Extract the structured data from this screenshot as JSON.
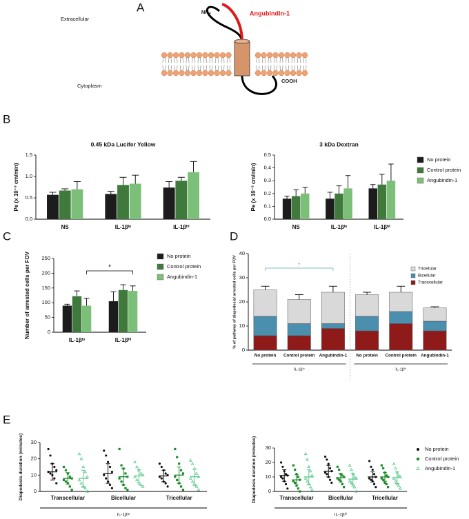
{
  "figure": {
    "panel_labels": [
      "A",
      "B",
      "C",
      "D",
      "E"
    ],
    "diagram": {
      "extracellular": "Extracellular",
      "cytoplasm": "Cytoplasm",
      "n_terminus": "NH₂",
      "c_terminus": "COOH",
      "ligand": "Angubindin-1"
    }
  },
  "chart_data": [
    {
      "type": "bar",
      "title": "0.45 kDa Lucifer Yellow",
      "ylabel": "Pe (x 10⁻³ cm/min)",
      "categories": [
        "NS",
        "IL-1βˡᵒ",
        "IL-1βʰⁱ"
      ],
      "ylim": [
        0,
        1.5
      ],
      "yticks": [
        {
          "value": 0,
          "label": "0.0"
        },
        0.5,
        {
          "value": 1,
          "label": "1.0"
        },
        1.5
      ],
      "legend": false,
      "series": [
        {
          "name": "No protein",
          "color": "#1c1c1c",
          "values": [
            0.57,
            0.59,
            0.74
          ],
          "errors": [
            0.06,
            0.06,
            0.14
          ]
        },
        {
          "name": "Control protein",
          "color": "#3f7a3c",
          "values": [
            0.67,
            0.8,
            0.9
          ],
          "errors": [
            0.04,
            0.18,
            0.08
          ]
        },
        {
          "name": "Angubindin-1",
          "color": "#7cbf78",
          "values": [
            0.7,
            0.83,
            1.1
          ],
          "errors": [
            0.18,
            0.2,
            0.25
          ]
        }
      ]
    },
    {
      "type": "bar",
      "title": "3 kDa Dextran",
      "ylabel": "Pe (x 10⁻³ cm/min)",
      "categories": [
        "NS",
        "IL-1βˡᵒ",
        "IL-1βʰⁱ"
      ],
      "ylim": [
        0,
        0.5
      ],
      "yticks": [
        {
          "value": 0,
          "label": "0.0"
        },
        0.1,
        0.2,
        0.3,
        0.4,
        0.5
      ],
      "legend": true,
      "series": [
        {
          "name": "No protein",
          "color": "#1c1c1c",
          "values": [
            0.16,
            0.16,
            0.24
          ],
          "errors": [
            0.02,
            0.05,
            0.03
          ]
        },
        {
          "name": "Control protein",
          "color": "#3f7a3c",
          "values": [
            0.18,
            0.2,
            0.27
          ],
          "errors": [
            0.05,
            0.06,
            0.08
          ]
        },
        {
          "name": "Angubindin-1",
          "color": "#7cbf78",
          "values": [
            0.2,
            0.24,
            0.3
          ],
          "errors": [
            0.05,
            0.1,
            0.13
          ]
        }
      ]
    },
    {
      "type": "bar",
      "ylabel": "Number of arrested cells per FOV",
      "categories": [
        "IL-1βˡᵒ",
        "IL-1βʰⁱ"
      ],
      "ylim": [
        0,
        250
      ],
      "yticks": [
        0,
        50,
        100,
        150,
        200,
        250
      ],
      "legend": true,
      "annotations": [
        "*"
      ],
      "series": [
        {
          "name": "No protein",
          "color": "#1c1c1c",
          "values": [
            90,
            105
          ],
          "errors": [
            5,
            32
          ]
        },
        {
          "name": "Control protein",
          "color": "#3f7a3c",
          "values": [
            122,
            143
          ],
          "errors": [
            18,
            18
          ]
        },
        {
          "name": "Angubindin-1",
          "color": "#7cbf78",
          "values": [
            90,
            140
          ],
          "errors": [
            25,
            17
          ]
        }
      ]
    },
    {
      "type": "stacked",
      "ylabel": "% of pathway of diapedesis/ arrested cells per FOV",
      "categories": [
        "No protein",
        "Control protein",
        "Angubindin-1",
        "No protein",
        "Control protein",
        "Angubindin-1"
      ],
      "group_labels": [
        "IL-1βˡᵒ",
        "IL-1βʰⁱ"
      ],
      "ylim": [
        0,
        40
      ],
      "yticks": [
        0,
        10,
        20,
        30,
        40
      ],
      "legend": true,
      "annotations": [
        "*"
      ],
      "series": [
        {
          "name": "Transcellular",
          "color": "#8e1a1a",
          "values": [
            6,
            6,
            9,
            8,
            11,
            8
          ],
          "errors": [
            1.5,
            1,
            0.5,
            0.5,
            0.5,
            0.5
          ]
        },
        {
          "name": "Bicellular",
          "color": "#4b8fae",
          "values": [
            8,
            5,
            2,
            6,
            5,
            4
          ],
          "errors": [
            1,
            1,
            0.5,
            0.7,
            1,
            1
          ]
        },
        {
          "name": "Tricellular",
          "color": "#d9d9d9",
          "values": [
            11,
            10,
            13,
            9,
            8,
            5.5
          ],
          "errors": [
            1.5,
            2,
            2.5,
            1,
            2.5,
            0.5
          ]
        }
      ]
    },
    {
      "type": "dotplot",
      "ylabel": "Diapedesis duration (minutes)",
      "categories": [
        "Transcellular",
        "Bicellular",
        "Tricellular"
      ],
      "group_label": "IL-1βˡᵒ",
      "ylim": [
        0,
        30
      ],
      "yticks": [
        0,
        10,
        20,
        30
      ],
      "legend": false,
      "series": [
        {
          "name": "No protein",
          "color": "#111111",
          "marker": "circle",
          "points": [
            [
              26,
              22,
              17,
              15,
              13,
              12,
              11,
              10,
              8,
              5
            ],
            [
              25,
              22,
              18,
              15,
              12,
              10,
              8,
              6,
              4,
              2
            ],
            [
              17,
              15,
              13,
              11,
              10,
              9,
              8,
              6,
              5,
              3
            ]
          ],
          "means": [
            12,
            11,
            9.5
          ],
          "sds": [
            5,
            6,
            3.5
          ]
        },
        {
          "name": "Control protein",
          "color": "#1c8a2c",
          "marker": "square",
          "points": [
            [
              15,
              13,
              11,
              9,
              8,
              7,
              6,
              5,
              3,
              1
            ],
            [
              26,
              16,
              14,
              11,
              9,
              8,
              6,
              4,
              2,
              1
            ],
            [
              26,
              21,
              17,
              13,
              11,
              9,
              7,
              5,
              3,
              1
            ]
          ],
          "means": [
            8,
            9,
            10
          ],
          "sds": [
            3.5,
            5,
            5
          ]
        },
        {
          "name": "Angubindin-1",
          "color": "#5cc88c",
          "marker": "triangle",
          "points": [
            [
              23,
              20,
              15,
              12,
              9,
              7,
              5,
              3,
              2,
              0
            ],
            [
              18,
              15,
              13,
              11,
              10,
              9,
              7,
              5,
              4,
              3
            ],
            [
              19,
              17,
              14,
              11,
              9,
              8,
              6,
              4,
              3,
              1
            ]
          ],
          "means": [
            8,
            9.5,
            9
          ],
          "sds": [
            5,
            4,
            4.5
          ]
        }
      ]
    },
    {
      "type": "dotplot",
      "ylabel": "Diapedesis duration (minutes)",
      "categories": [
        "Transcellular",
        "Bicellular",
        "Tricellular"
      ],
      "group_label": "IL-1βʰⁱ",
      "ylim": [
        0,
        30
      ],
      "yticks": [
        0,
        10,
        20,
        30
      ],
      "legend": true,
      "series": [
        {
          "name": "No protein",
          "color": "#111111",
          "marker": "circle",
          "points": [
            [
              20,
              17,
              14,
              12,
              11,
              10,
              9,
              7,
              5,
              2
            ],
            [
              24,
              22,
              19,
              16,
              14,
              13,
              12,
              10,
              8,
              6
            ],
            [
              21,
              17,
              15,
              12,
              10,
              9,
              8,
              7,
              5,
              3
            ]
          ],
          "means": [
            11,
            14,
            10
          ],
          "sds": [
            4,
            4,
            3.5
          ]
        },
        {
          "name": "Control protein",
          "color": "#1c8a2c",
          "marker": "square",
          "points": [
            [
              18,
              15,
              12,
              10,
              8,
              7,
              6,
              4,
              2,
              0
            ],
            [
              17,
              15,
              12,
              11,
              10,
              9,
              8,
              7,
              5,
              3
            ],
            [
              18,
              16,
              13,
              11,
              10,
              9,
              8,
              6,
              5,
              3
            ]
          ],
          "means": [
            8,
            9.5,
            10
          ],
          "sds": [
            3.5,
            3,
            3
          ]
        },
        {
          "name": "Angubindin-1",
          "color": "#5cc88c",
          "marker": "triangle",
          "points": [
            [
              26,
              22,
              17,
              14,
              11,
              9,
              7,
              5,
              3,
              1
            ],
            [
              18,
              15,
              12,
              10,
              9,
              7,
              6,
              4,
              3,
              0
            ],
            [
              19,
              16,
              13,
              11,
              10,
              9,
              7,
              5,
              4,
              2
            ]
          ],
          "means": [
            10,
            8.5,
            9.5
          ],
          "sds": [
            5,
            4,
            4
          ]
        }
      ]
    }
  ]
}
